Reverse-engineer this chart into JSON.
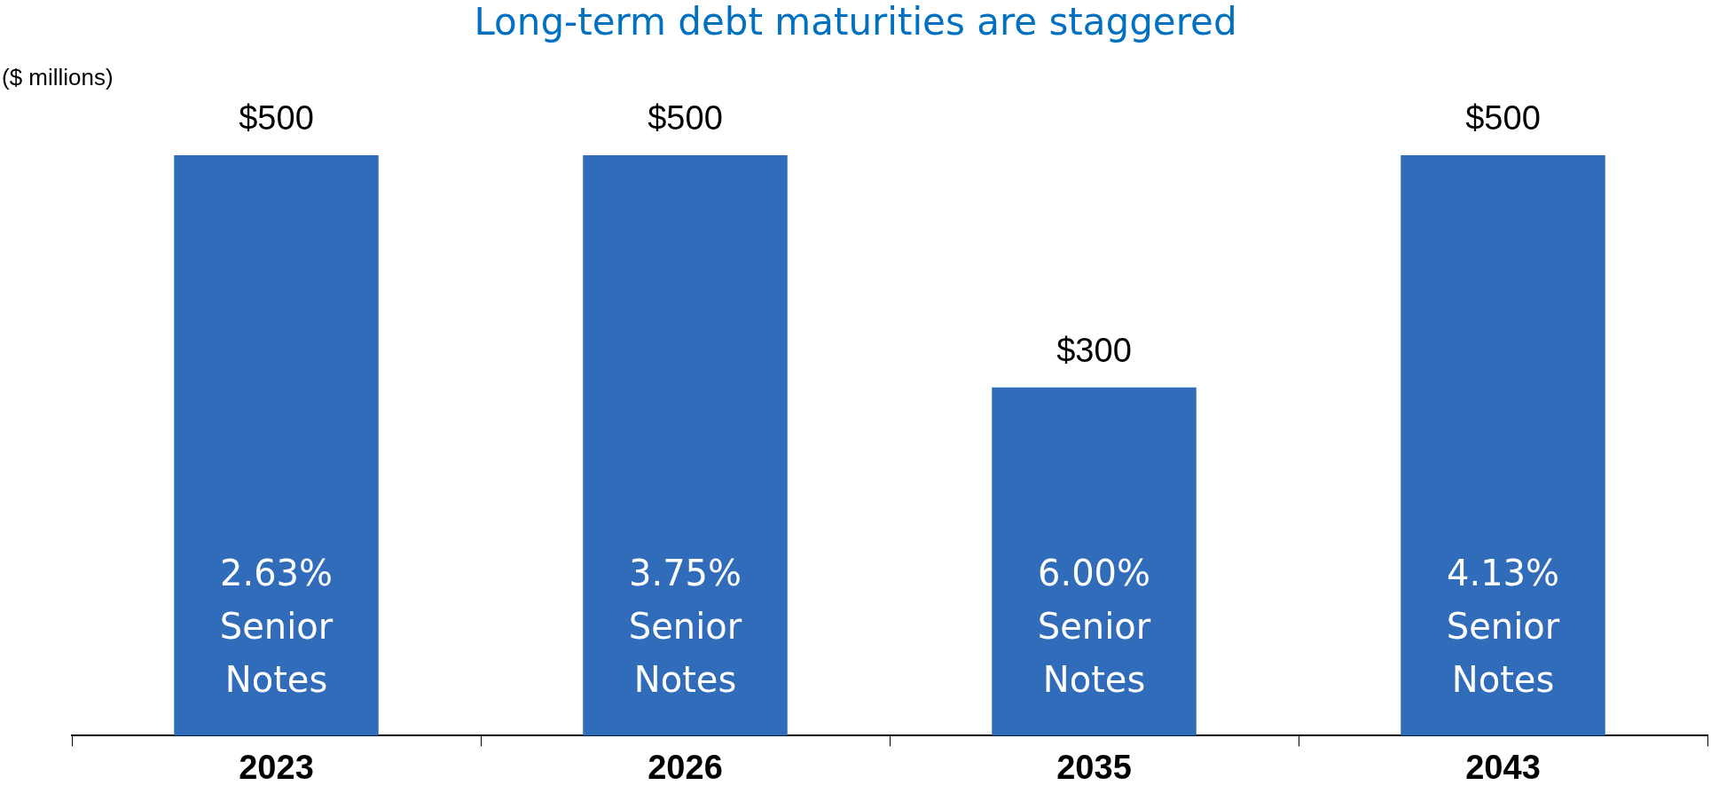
{
  "chart_data": {
    "type": "bar",
    "title": "Long-term debt maturities are staggered",
    "ylabel": "($ millions)",
    "categories": [
      "2023",
      "2026",
      "2035",
      "2043"
    ],
    "values": [
      500,
      500,
      300,
      500
    ],
    "color": "#306cba",
    "value_labels": [
      "$500",
      "$500",
      "$300",
      "$500"
    ],
    "annotations": [
      "2.63% Senior Notes",
      "3.75% Senior Notes",
      "6.00% Senior Notes",
      "4.13% Senior Notes"
    ],
    "grid": false,
    "legend": false
  }
}
